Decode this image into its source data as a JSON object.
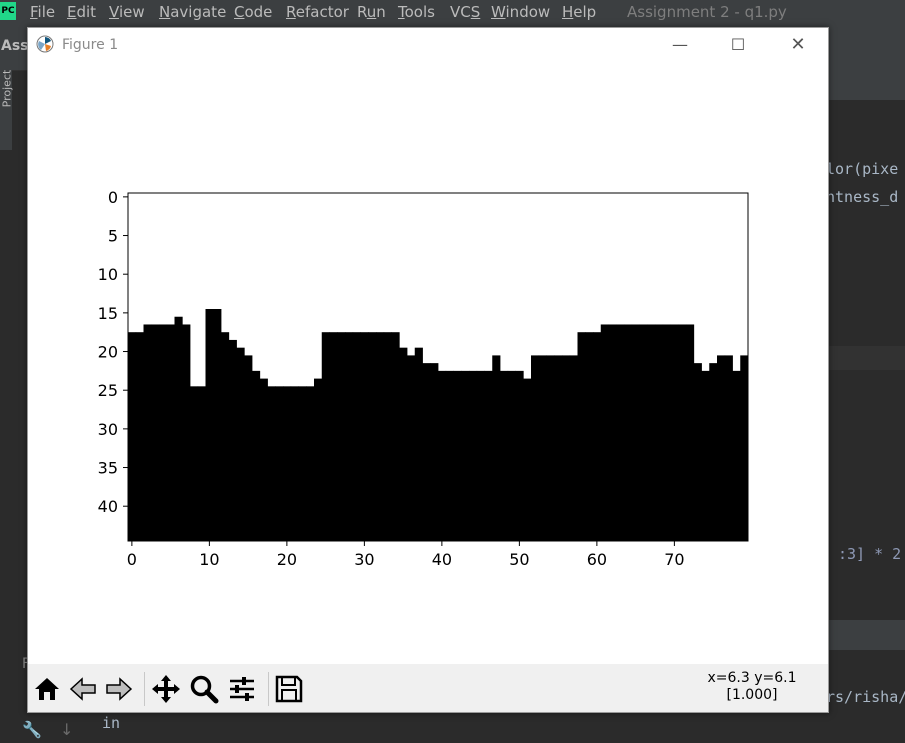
{
  "ide": {
    "logo": "PC",
    "menu": [
      "File",
      "Edit",
      "View",
      "Navigate",
      "Code",
      "Refactor",
      "Run",
      "Tools",
      "VCS",
      "Window",
      "Help"
    ],
    "menu_mnemonic_index": [
      0,
      0,
      0,
      0,
      0,
      0,
      1,
      0,
      2,
      0,
      0
    ],
    "window_title": "Assignment 2 - q1.py",
    "project_label": "Ass",
    "project_tab": "Project",
    "code_line_1": "lor(pixe",
    "code_line_2": "htness_d",
    "code_line_3": ":3] * 2",
    "console_path": "rs/risha/",
    "console_text": "in",
    "left_bottom_label": "F"
  },
  "figure": {
    "title": "Figure 1",
    "window_buttons": {
      "minimize": "—",
      "maximize": "☐",
      "close": "✕"
    },
    "toolbar": {
      "tools": [
        "home-icon",
        "back-icon",
        "forward-icon",
        "pan-icon",
        "zoom-icon",
        "configure-subplots-icon",
        "save-icon"
      ]
    },
    "coord_readout": {
      "line1": "x=6.3 y=6.1",
      "line2": "[1.000]"
    }
  },
  "chart_data": {
    "type": "heatmap",
    "colormap": "binary",
    "width": 80,
    "height": 45,
    "xticks": [
      0,
      10,
      20,
      30,
      40,
      50,
      60,
      70
    ],
    "yticks": [
      0,
      5,
      10,
      15,
      20,
      25,
      30,
      35,
      40
    ],
    "top_edge_by_column": [
      18,
      18,
      17,
      17,
      17,
      17,
      16,
      17,
      25,
      25,
      15,
      15,
      18,
      19,
      20,
      21,
      23,
      24,
      25,
      25,
      25,
      25,
      25,
      25,
      24,
      18,
      18,
      18,
      18,
      18,
      18,
      18,
      18,
      18,
      18,
      20,
      21,
      20,
      22,
      22,
      23,
      23,
      23,
      23,
      23,
      23,
      23,
      21,
      23,
      23,
      23,
      24,
      21,
      21,
      21,
      21,
      21,
      21,
      18,
      18,
      18,
      17,
      17,
      17,
      17,
      17,
      17,
      17,
      17,
      17,
      17,
      17,
      17,
      22,
      23,
      22,
      21,
      21,
      23,
      21
    ]
  }
}
